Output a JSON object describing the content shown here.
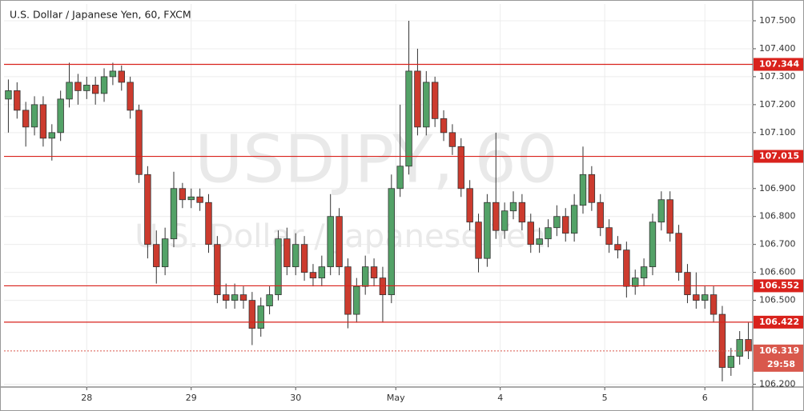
{
  "chart_data": {
    "type": "candlestick",
    "title": "U.S. Dollar / Japanese Yen, 60, FXCM",
    "watermark": "USDJPY, 60",
    "watermark_subtitle": "U.S. Dollar / Japanese Yen",
    "x": [
      0,
      2,
      4,
      6,
      8,
      10,
      12,
      14,
      16,
      18,
      20,
      22,
      24,
      26,
      28,
      30,
      32,
      34,
      36,
      38,
      40,
      42,
      44,
      46,
      48,
      50,
      52,
      54,
      56,
      58,
      60,
      62,
      64,
      66,
      68,
      70,
      72,
      74,
      76,
      78,
      80,
      82,
      84,
      86,
      88,
      90,
      92,
      94,
      96,
      98,
      100,
      102,
      104,
      106,
      108,
      110,
      112,
      114,
      116,
      118,
      120,
      122,
      124,
      126,
      128,
      130,
      132,
      134,
      136,
      138,
      140,
      142,
      144,
      146,
      148,
      150,
      152,
      154,
      156,
      158,
      160,
      162,
      164,
      166,
      168,
      170
    ],
    "open": [
      107.22,
      107.25,
      107.18,
      107.12,
      107.2,
      107.08,
      107.1,
      107.22,
      107.28,
      107.25,
      107.27,
      107.24,
      107.3,
      107.32,
      107.28,
      107.18,
      106.95,
      106.7,
      106.62,
      106.72,
      106.9,
      106.86,
      106.87,
      106.85,
      106.7,
      106.52,
      106.5,
      106.52,
      106.5,
      106.4,
      106.48,
      106.52,
      106.72,
      106.62,
      106.7,
      106.6,
      106.58,
      106.62,
      106.8,
      106.62,
      106.45,
      106.55,
      106.62,
      106.58,
      106.52,
      106.9,
      106.98,
      107.32,
      107.12,
      107.28,
      107.15,
      107.1,
      107.05,
      106.9,
      106.78,
      106.65,
      106.85,
      106.75,
      106.82,
      106.85,
      106.78,
      106.7,
      106.72,
      106.76,
      106.8,
      106.74,
      106.84,
      106.95,
      106.85,
      106.76,
      106.7,
      106.68,
      106.55,
      106.58,
      106.62,
      106.78,
      106.86,
      106.74,
      106.6,
      106.52,
      106.5,
      106.52,
      106.45,
      106.26,
      106.3,
      106.36
    ],
    "high": [
      107.29,
      107.28,
      107.21,
      107.23,
      107.23,
      107.13,
      107.25,
      107.35,
      107.31,
      107.3,
      107.3,
      107.33,
      107.35,
      107.34,
      107.3,
      107.2,
      106.98,
      106.75,
      106.76,
      106.96,
      106.92,
      106.9,
      106.9,
      106.88,
      106.73,
      106.56,
      106.56,
      106.55,
      106.53,
      106.51,
      106.55,
      106.75,
      106.76,
      106.74,
      106.73,
      106.63,
      106.66,
      106.88,
      106.83,
      106.65,
      106.58,
      106.66,
      106.65,
      106.62,
      106.95,
      107.2,
      107.5,
      107.4,
      107.32,
      107.3,
      107.18,
      107.13,
      107.08,
      106.93,
      106.81,
      106.88,
      107.1,
      106.85,
      106.89,
      106.88,
      106.81,
      106.76,
      106.79,
      106.84,
      106.83,
      106.88,
      107.05,
      106.98,
      106.88,
      106.79,
      106.73,
      106.71,
      106.61,
      106.65,
      106.81,
      106.89,
      106.89,
      106.77,
      106.63,
      106.6,
      106.55,
      106.55,
      106.48,
      106.33,
      106.39,
      106.42
    ],
    "low": [
      107.1,
      107.15,
      107.05,
      107.09,
      107.05,
      107.0,
      107.07,
      107.19,
      107.2,
      107.22,
      107.2,
      107.21,
      107.27,
      107.25,
      107.15,
      106.92,
      106.65,
      106.56,
      106.59,
      106.69,
      106.83,
      106.83,
      106.82,
      106.67,
      106.49,
      106.47,
      106.47,
      106.47,
      106.34,
      106.37,
      106.45,
      106.5,
      106.59,
      106.59,
      106.57,
      106.55,
      106.55,
      106.59,
      106.59,
      106.4,
      106.42,
      106.52,
      106.55,
      106.42,
      106.49,
      106.87,
      106.95,
      107.09,
      107.09,
      107.12,
      107.07,
      107.02,
      106.87,
      106.75,
      106.6,
      106.62,
      106.72,
      106.72,
      106.79,
      106.75,
      106.67,
      106.67,
      106.69,
      106.73,
      106.71,
      106.71,
      106.81,
      106.82,
      106.73,
      106.67,
      106.65,
      106.51,
      106.52,
      106.55,
      106.59,
      106.75,
      106.71,
      106.57,
      106.49,
      106.47,
      106.47,
      106.42,
      106.21,
      106.23,
      106.27,
      106.29
    ],
    "close": [
      107.25,
      107.18,
      107.12,
      107.2,
      107.08,
      107.1,
      107.22,
      107.28,
      107.25,
      107.27,
      107.24,
      107.3,
      107.32,
      107.28,
      107.18,
      106.95,
      106.7,
      106.62,
      106.72,
      106.9,
      106.86,
      106.87,
      106.85,
      106.7,
      106.52,
      106.5,
      106.52,
      106.5,
      106.4,
      106.48,
      106.52,
      106.72,
      106.62,
      106.7,
      106.6,
      106.58,
      106.62,
      106.8,
      106.62,
      106.45,
      106.55,
      106.62,
      106.58,
      106.52,
      106.9,
      106.98,
      107.32,
      107.12,
      107.28,
      107.15,
      107.1,
      107.05,
      106.9,
      106.78,
      106.65,
      106.85,
      106.75,
      106.82,
      106.85,
      106.78,
      106.7,
      106.72,
      106.76,
      106.8,
      106.74,
      106.84,
      106.95,
      106.85,
      106.76,
      106.7,
      106.68,
      106.55,
      106.58,
      106.62,
      106.78,
      106.86,
      106.74,
      106.6,
      106.52,
      106.5,
      106.52,
      106.45,
      106.26,
      106.3,
      106.36,
      106.319
    ],
    "up_color": "#53a267",
    "down_color": "#cc3b2e",
    "xlim": [
      -1,
      171
    ],
    "xticks": [
      {
        "value": 18,
        "label": "28"
      },
      {
        "value": 42,
        "label": "29"
      },
      {
        "value": 66,
        "label": "30"
      },
      {
        "value": 89,
        "label": "May"
      },
      {
        "value": 113,
        "label": "4"
      },
      {
        "value": 137,
        "label": "5"
      },
      {
        "value": 160,
        "label": "6"
      }
    ],
    "ylim": [
      106.19,
      107.56
    ],
    "yticks": [
      {
        "value": 107.5,
        "label": "107.500"
      },
      {
        "value": 107.4,
        "label": "107.400"
      },
      {
        "value": 107.3,
        "label": "107.300"
      },
      {
        "value": 107.2,
        "label": "107.200"
      },
      {
        "value": 107.1,
        "label": "107.100"
      },
      {
        "value": 106.9,
        "label": "106.900"
      },
      {
        "value": 106.8,
        "label": "106.800"
      },
      {
        "value": 106.7,
        "label": "106.700"
      },
      {
        "value": 106.6,
        "label": "106.600"
      },
      {
        "value": 106.5,
        "label": "106.500"
      },
      {
        "value": 106.2,
        "label": "106.200"
      }
    ],
    "grid": true,
    "levels": [
      107.344,
      107.015,
      106.552,
      106.422
    ],
    "level_color": "#d9221c",
    "current_price": 106.319,
    "countdown": "29:58",
    "current_color": "#d9584c"
  }
}
